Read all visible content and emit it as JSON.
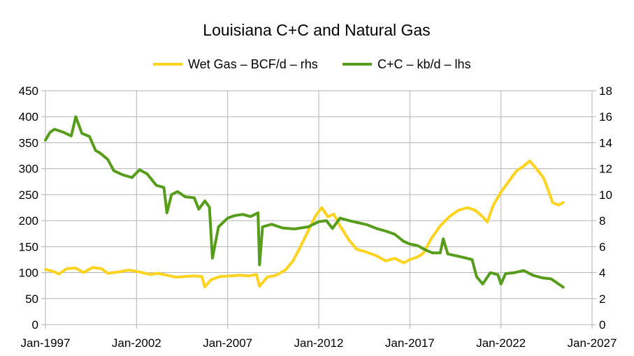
{
  "chart_data": {
    "type": "line",
    "title": "Louisiana C+C and Natural Gas",
    "legend_position": "top",
    "grid": true,
    "x_ticks": [
      "Jan-1997",
      "Jan-2002",
      "Jan-2007",
      "Jan-2012",
      "Jan-2017",
      "Jan-2022",
      "Jan-2027"
    ],
    "x_range": [
      "1997-01",
      "2027-01"
    ],
    "left_axis": {
      "min": 0,
      "max": 450,
      "step": 50,
      "ticks": [
        "0",
        "50",
        "100",
        "150",
        "200",
        "250",
        "300",
        "350",
        "400",
        "450"
      ]
    },
    "right_axis": {
      "min": 0,
      "max": 18,
      "step": 2,
      "ticks": [
        "0",
        "2",
        "4",
        "6",
        "8",
        "10",
        "12",
        "14",
        "16",
        "18"
      ]
    },
    "series": [
      {
        "name": "Wet Gas – BCF/d – rhs",
        "axis": "right",
        "color": "#ffd320",
        "points": [
          [
            "1997-01",
            4.25
          ],
          [
            "1997-06",
            4.1
          ],
          [
            "1997-10",
            3.9
          ],
          [
            "1998-03",
            4.3
          ],
          [
            "1998-09",
            4.35
          ],
          [
            "1999-02",
            4.0
          ],
          [
            "1999-08",
            4.4
          ],
          [
            "2000-02",
            4.3
          ],
          [
            "2000-06",
            3.95
          ],
          [
            "2001-01",
            4.05
          ],
          [
            "2001-08",
            4.2
          ],
          [
            "2002-03",
            4.05
          ],
          [
            "2002-10",
            3.85
          ],
          [
            "2003-03",
            3.95
          ],
          [
            "2003-09",
            3.8
          ],
          [
            "2004-03",
            3.65
          ],
          [
            "2004-09",
            3.7
          ],
          [
            "2005-03",
            3.75
          ],
          [
            "2005-08",
            3.7
          ],
          [
            "2005-10",
            2.9
          ],
          [
            "2006-02",
            3.45
          ],
          [
            "2006-08",
            3.7
          ],
          [
            "2007-03",
            3.75
          ],
          [
            "2007-09",
            3.8
          ],
          [
            "2008-03",
            3.75
          ],
          [
            "2008-08",
            3.85
          ],
          [
            "2008-10",
            2.95
          ],
          [
            "2009-03",
            3.65
          ],
          [
            "2009-09",
            3.8
          ],
          [
            "2010-03",
            4.2
          ],
          [
            "2010-08",
            4.9
          ],
          [
            "2011-01",
            6.0
          ],
          [
            "2011-06",
            7.2
          ],
          [
            "2011-11",
            8.4
          ],
          [
            "2012-03",
            9.0
          ],
          [
            "2012-07",
            8.3
          ],
          [
            "2012-11",
            8.5
          ],
          [
            "2013-03",
            7.6
          ],
          [
            "2013-09",
            6.5
          ],
          [
            "2014-02",
            5.8
          ],
          [
            "2014-08",
            5.6
          ],
          [
            "2015-03",
            5.3
          ],
          [
            "2015-09",
            4.9
          ],
          [
            "2016-03",
            5.1
          ],
          [
            "2016-09",
            4.75
          ],
          [
            "2017-01",
            5.0
          ],
          [
            "2017-06",
            5.2
          ],
          [
            "2017-10",
            5.5
          ],
          [
            "2018-03",
            6.6
          ],
          [
            "2018-09",
            7.6
          ],
          [
            "2019-03",
            8.3
          ],
          [
            "2019-09",
            8.8
          ],
          [
            "2020-03",
            9.0
          ],
          [
            "2020-08",
            8.8
          ],
          [
            "2021-01",
            8.3
          ],
          [
            "2021-04",
            7.9
          ],
          [
            "2021-08",
            9.2
          ],
          [
            "2022-01",
            10.2
          ],
          [
            "2022-06",
            11.0
          ],
          [
            "2022-11",
            11.8
          ],
          [
            "2023-04",
            12.2
          ],
          [
            "2023-08",
            12.6
          ],
          [
            "2024-01",
            11.9
          ],
          [
            "2024-05",
            11.3
          ],
          [
            "2024-08",
            10.4
          ],
          [
            "2024-11",
            9.4
          ],
          [
            "2025-03",
            9.2
          ],
          [
            "2025-06",
            9.4
          ]
        ]
      },
      {
        "name": "C+C – kb/d – lhs",
        "axis": "left",
        "color": "#579d1c",
        "points": [
          [
            "1997-01",
            355
          ],
          [
            "1997-04",
            370
          ],
          [
            "1997-07",
            376
          ],
          [
            "1998-01",
            370
          ],
          [
            "1998-06",
            363
          ],
          [
            "1998-09",
            400
          ],
          [
            "1999-01",
            368
          ],
          [
            "1999-06",
            362
          ],
          [
            "1999-10",
            335
          ],
          [
            "2000-01",
            330
          ],
          [
            "2000-06",
            318
          ],
          [
            "2000-10",
            296
          ],
          [
            "2001-04",
            288
          ],
          [
            "2001-10",
            283
          ],
          [
            "2002-03",
            298
          ],
          [
            "2002-08",
            290
          ],
          [
            "2003-02",
            268
          ],
          [
            "2003-07",
            264
          ],
          [
            "2003-09",
            215
          ],
          [
            "2003-12",
            250
          ],
          [
            "2004-04",
            256
          ],
          [
            "2004-09",
            246
          ],
          [
            "2005-03",
            244
          ],
          [
            "2005-06",
            222
          ],
          [
            "2005-10",
            238
          ],
          [
            "2006-01",
            226
          ],
          [
            "2006-03",
            128
          ],
          [
            "2006-07",
            188
          ],
          [
            "2007-01",
            205
          ],
          [
            "2007-06",
            210
          ],
          [
            "2007-11",
            212
          ],
          [
            "2008-04",
            208
          ],
          [
            "2008-09",
            215
          ],
          [
            "2008-10",
            115
          ],
          [
            "2008-12",
            188
          ],
          [
            "2009-06",
            193
          ],
          [
            "2010-01",
            186
          ],
          [
            "2010-09",
            184
          ],
          [
            "2011-06",
            188
          ],
          [
            "2012-01",
            198
          ],
          [
            "2012-06",
            200
          ],
          [
            "2012-10",
            185
          ],
          [
            "2013-03",
            205
          ],
          [
            "2013-09",
            200
          ],
          [
            "2014-03",
            196
          ],
          [
            "2014-09",
            192
          ],
          [
            "2015-03",
            185
          ],
          [
            "2015-09",
            180
          ],
          [
            "2016-03",
            174
          ],
          [
            "2016-09",
            160
          ],
          [
            "2017-01",
            155
          ],
          [
            "2017-06",
            152
          ],
          [
            "2017-11",
            144
          ],
          [
            "2018-04",
            138
          ],
          [
            "2018-09",
            138
          ],
          [
            "2018-11",
            165
          ],
          [
            "2019-02",
            136
          ],
          [
            "2019-08",
            132
          ],
          [
            "2020-02",
            128
          ],
          [
            "2020-06",
            125
          ],
          [
            "2020-09",
            92
          ],
          [
            "2021-01",
            78
          ],
          [
            "2021-06",
            100
          ],
          [
            "2021-11",
            96
          ],
          [
            "2022-01",
            78
          ],
          [
            "2022-04",
            98
          ],
          [
            "2022-10",
            100
          ],
          [
            "2023-04",
            104
          ],
          [
            "2023-10",
            95
          ],
          [
            "2024-04",
            90
          ],
          [
            "2024-10",
            88
          ],
          [
            "2025-02",
            80
          ],
          [
            "2025-06",
            72
          ]
        ]
      }
    ]
  }
}
